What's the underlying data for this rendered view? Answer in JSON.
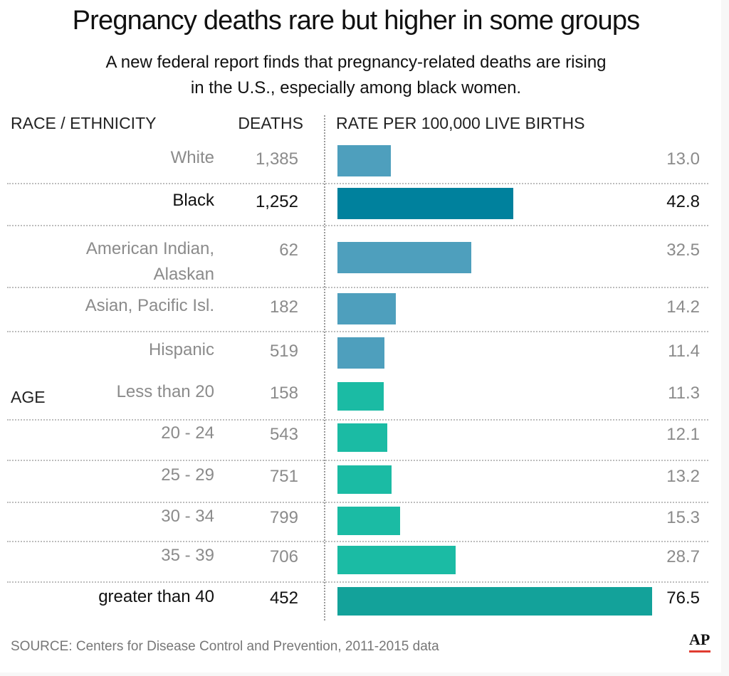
{
  "title": "Pregnancy deaths rare but higher in some groups",
  "subtitle": "A new federal report finds that pregnancy-related deaths are rising in the U.S., especially among black women.",
  "headers": {
    "race": "RACE / ETHNICITY",
    "deaths": "DEATHS",
    "rate": "RATE PER 100,000 LIVE BIRTHS",
    "age": "AGE"
  },
  "source": "SOURCE: Centers for Disease Control and Prevention, 2011-2015 data",
  "logo_text": "AP",
  "colors": {
    "race_bar": "#4e9fbd",
    "race_bar_highlight": "#00819d",
    "age_bar": "#1bbba4",
    "age_bar_highlight": "#13a29a",
    "accent_red": "#e03c31"
  },
  "chart_data": {
    "type": "bar",
    "orientation": "horizontal",
    "xlim": [
      0,
      76.5
    ],
    "groups": [
      {
        "name": "RACE / ETHNICITY",
        "rows": [
          {
            "label": "White",
            "deaths": "1,385",
            "rate": 13.0,
            "rate_label": "13.0",
            "highlight": false
          },
          {
            "label": "Black",
            "deaths": "1,252",
            "rate": 42.8,
            "rate_label": "42.8",
            "highlight": true
          },
          {
            "label": "American Indian,\nAlaskan",
            "deaths": "62",
            "rate": 32.5,
            "rate_label": "32.5",
            "highlight": false
          },
          {
            "label": "Asian, Pacific Isl.",
            "deaths": "182",
            "rate": 14.2,
            "rate_label": "14.2",
            "highlight": false
          },
          {
            "label": "Hispanic",
            "deaths": "519",
            "rate": 11.4,
            "rate_label": "11.4",
            "highlight": false
          }
        ]
      },
      {
        "name": "AGE",
        "rows": [
          {
            "label": "Less than 20",
            "deaths": "158",
            "rate": 11.3,
            "rate_label": "11.3",
            "highlight": false
          },
          {
            "label": "20 - 24",
            "deaths": "543",
            "rate": 12.1,
            "rate_label": "12.1",
            "highlight": false
          },
          {
            "label": "25 - 29",
            "deaths": "751",
            "rate": 13.2,
            "rate_label": "13.2",
            "highlight": false
          },
          {
            "label": "30 - 34",
            "deaths": "799",
            "rate": 15.3,
            "rate_label": "15.3",
            "highlight": false
          },
          {
            "label": "35 - 39",
            "deaths": "706",
            "rate": 28.7,
            "rate_label": "28.7",
            "highlight": false
          },
          {
            "label": "greater than 40",
            "deaths": "452",
            "rate": 76.5,
            "rate_label": "76.5",
            "highlight": true
          }
        ]
      }
    ]
  }
}
